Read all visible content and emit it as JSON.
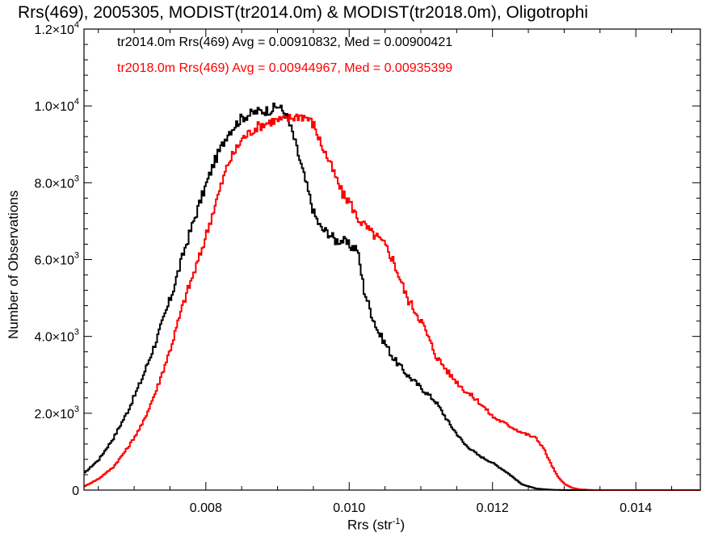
{
  "chart_data": {
    "type": "line",
    "title": "Rrs(469), 2005305, MODIST(tr2014.0m) & MODIST(tr2018.0m), Oligotrophi",
    "xlabel": "Rrs (str",
    "xlabel_exp": "-1",
    "xlabel_close": ")",
    "ylabel": "Number of Observations",
    "xlim": [
      0.0063,
      0.0149
    ],
    "ylim": [
      0,
      12000
    ],
    "x_ticks": [
      {
        "value": 0.008,
        "label": "0.008"
      },
      {
        "value": 0.01,
        "label": "0.010"
      },
      {
        "value": 0.012,
        "label": "0.012"
      },
      {
        "value": 0.014,
        "label": "0.014"
      }
    ],
    "y_ticks": [
      {
        "value": 0,
        "mant": "0",
        "exp": ""
      },
      {
        "value": 2000,
        "mant": "2.0×10",
        "exp": "3"
      },
      {
        "value": 4000,
        "mant": "4.0×10",
        "exp": "3"
      },
      {
        "value": 6000,
        "mant": "6.0×10",
        "exp": "3"
      },
      {
        "value": 8000,
        "mant": "8.0×10",
        "exp": "3"
      },
      {
        "value": 10000,
        "mant": "1.0×10",
        "exp": "4"
      },
      {
        "value": 12000,
        "mant": "1.2×10",
        "exp": "4"
      }
    ],
    "annotations": [
      "tr2014.0m Rrs(469) Avg = 0.00910832, Med = 0.00900421",
      "tr2018.0m Rrs(469) Avg = 0.00944967, Med = 0.00935399"
    ],
    "grid": false,
    "series": [
      {
        "color": "#000000",
        "x": [
          0.0063,
          0.0065,
          0.0067,
          0.0069,
          0.0071,
          0.0073,
          0.0075,
          0.0077,
          0.0079,
          0.0081,
          0.0083,
          0.0085,
          0.0087,
          0.0089,
          0.009,
          0.0091,
          0.0092,
          0.0093,
          0.0094,
          0.0095,
          0.0096,
          0.0097,
          0.0098,
          0.0099,
          0.01,
          0.0101,
          0.0102,
          0.0103,
          0.0104,
          0.0105,
          0.0106,
          0.0108,
          0.011,
          0.0112,
          0.0114,
          0.0116,
          0.0118,
          0.012,
          0.0122,
          0.0124,
          0.0126,
          0.0128,
          0.013,
          0.0132,
          0.0134,
          0.014,
          0.0149
        ],
        "y": [
          450,
          800,
          1350,
          2050,
          2900,
          3900,
          5000,
          6300,
          7450,
          8500,
          9300,
          9700,
          9850,
          9900,
          10000,
          9800,
          9300,
          8600,
          7900,
          7200,
          6800,
          6700,
          6500,
          6500,
          6350,
          6300,
          5200,
          4600,
          4100,
          3800,
          3450,
          3000,
          2650,
          2300,
          1700,
          1200,
          900,
          700,
          450,
          150,
          40,
          10,
          0,
          0,
          0,
          0,
          0
        ]
      },
      {
        "color": "#ff0000",
        "x": [
          0.0063,
          0.0065,
          0.0067,
          0.0069,
          0.0071,
          0.0073,
          0.0075,
          0.0077,
          0.0079,
          0.0081,
          0.0083,
          0.0085,
          0.0087,
          0.0089,
          0.0091,
          0.0092,
          0.0093,
          0.0094,
          0.0095,
          0.0096,
          0.0097,
          0.0098,
          0.0099,
          0.01,
          0.0101,
          0.0102,
          0.0103,
          0.0104,
          0.0105,
          0.0106,
          0.0108,
          0.011,
          0.0112,
          0.0114,
          0.0116,
          0.0118,
          0.012,
          0.0122,
          0.0124,
          0.0126,
          0.0127,
          0.0128,
          0.0129,
          0.013,
          0.0131,
          0.0132,
          0.0134,
          0.014,
          0.0149
        ],
        "y": [
          100,
          300,
          600,
          1100,
          1700,
          2600,
          3700,
          5000,
          6050,
          7300,
          8500,
          9150,
          9450,
          9600,
          9650,
          9700,
          9750,
          9700,
          9500,
          9000,
          8600,
          8150,
          7700,
          7500,
          7100,
          6900,
          6700,
          6550,
          6350,
          6000,
          5000,
          4400,
          3500,
          3000,
          2600,
          2300,
          1900,
          1700,
          1500,
          1350,
          1100,
          700,
          350,
          150,
          60,
          20,
          0,
          0,
          0
        ]
      }
    ]
  }
}
